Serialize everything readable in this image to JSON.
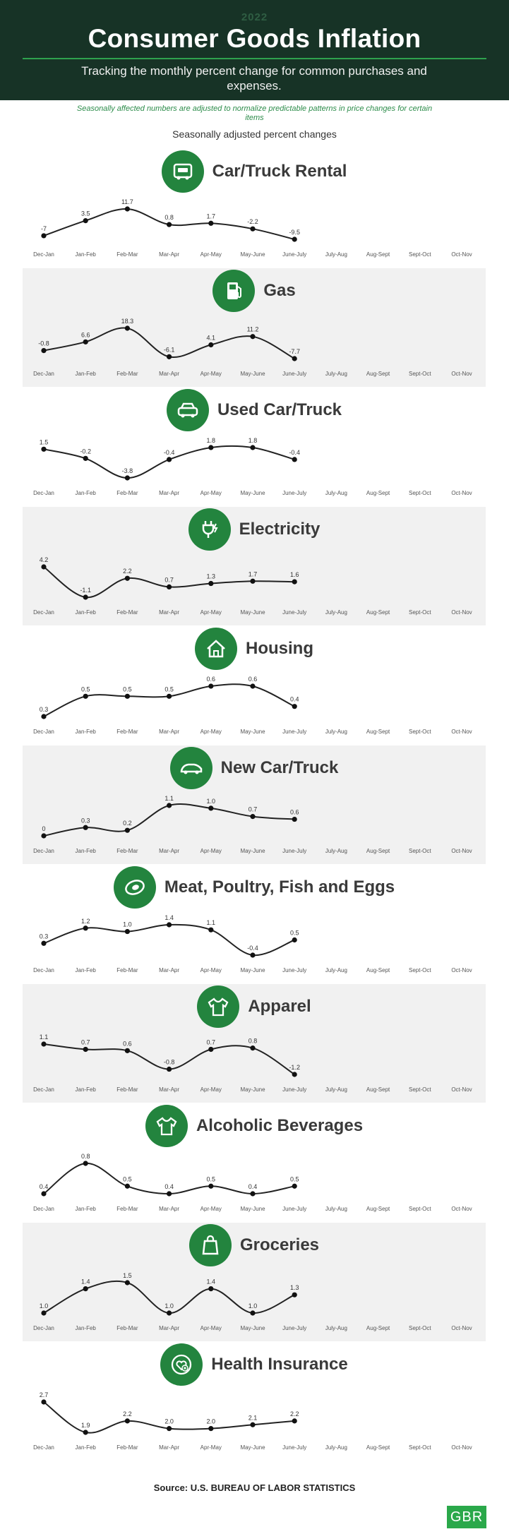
{
  "header": {
    "year": "2022",
    "title": "Consumer Goods Inflation",
    "subtitle": "Tracking the monthly percent change for common purchases and expenses."
  },
  "note": "Seasonally affected numbers are adjusted to normalize predictable patterns in price changes for certain items",
  "chart_label": "Seasonally adjusted percent changes",
  "source": "Source: U.S. BUREAU OF LABOR STATISTICS",
  "logo_text": "GBR",
  "colors": {
    "header_bg": "#173326",
    "accent": "#23843e",
    "line": "#222222",
    "panel_bg": "#f1f1f1"
  },
  "chart_data": [
    {
      "type": "line",
      "title": "Car/Truck Rental",
      "icon": "car-rental-icon",
      "categories": [
        "Dec-Jan",
        "Jan-Feb",
        "Feb-Mar",
        "Mar-Apr",
        "Apr-May",
        "May-June",
        "June-July",
        "July-Aug",
        "Aug-Sept",
        "Sept-Oct",
        "Oct-Nov"
      ],
      "values": [
        -7,
        3.5,
        11.7,
        0.8,
        1.7,
        -2.2,
        -9.5
      ],
      "labels": [
        "-7",
        "3.5",
        "11.7",
        "0.8",
        "1.7",
        "-2.2",
        "-9.5"
      ]
    },
    {
      "type": "line",
      "title": "Gas",
      "icon": "gas-pump-icon",
      "categories": [
        "Dec-Jan",
        "Jan-Feb",
        "Feb-Mar",
        "Mar-Apr",
        "Apr-May",
        "May-June",
        "June-July",
        "July-Aug",
        "Aug-Sept",
        "Sept-Oct",
        "Oct-Nov"
      ],
      "values": [
        -0.8,
        6.6,
        18.3,
        -6.1,
        4.1,
        11.2,
        -7.7
      ],
      "labels": [
        "-0.8",
        "6.6",
        "18.3",
        "-6.1",
        "4.1",
        "11.2",
        "-7.7"
      ]
    },
    {
      "type": "line",
      "title": "Used Car/Truck",
      "icon": "car-icon",
      "categories": [
        "Dec-Jan",
        "Jan-Feb",
        "Feb-Mar",
        "Mar-Apr",
        "Apr-May",
        "May-June",
        "June-July",
        "July-Aug",
        "Aug-Sept",
        "Sept-Oct",
        "Oct-Nov"
      ],
      "values": [
        1.5,
        -0.2,
        -3.8,
        -0.4,
        1.8,
        1.8,
        -0.4
      ],
      "labels": [
        "1.5",
        "-0.2",
        "-3.8",
        "-0.4",
        "1.8",
        "1.8",
        "-0.4"
      ]
    },
    {
      "type": "line",
      "title": "Electricity",
      "icon": "plug-icon",
      "categories": [
        "Dec-Jan",
        "Jan-Feb",
        "Feb-Mar",
        "Mar-Apr",
        "Apr-May",
        "May-June",
        "June-July",
        "July-Aug",
        "Aug-Sept",
        "Sept-Oct",
        "Oct-Nov"
      ],
      "values": [
        4.2,
        -1.1,
        2.2,
        0.7,
        1.3,
        1.7,
        1.6
      ],
      "labels": [
        "4.2",
        "-1.1",
        "2.2",
        "0.7",
        "1.3",
        "1.7",
        "1.6"
      ]
    },
    {
      "type": "line",
      "title": "Housing",
      "icon": "house-icon",
      "categories": [
        "Dec-Jan",
        "Jan-Feb",
        "Feb-Mar",
        "Mar-Apr",
        "Apr-May",
        "May-June",
        "June-July",
        "July-Aug",
        "Aug-Sept",
        "Sept-Oct",
        "Oct-Nov"
      ],
      "values": [
        0.3,
        0.5,
        0.5,
        0.5,
        0.6,
        0.6,
        0.4
      ],
      "labels": [
        "0.3",
        "0.5",
        "0.5",
        "0.5",
        "0.6",
        "0.6",
        "0.4"
      ]
    },
    {
      "type": "line",
      "title": "New Car/Truck",
      "icon": "new-car-icon",
      "categories": [
        "Dec-Jan",
        "Jan-Feb",
        "Feb-Mar",
        "Mar-Apr",
        "Apr-May",
        "May-June",
        "June-July",
        "July-Aug",
        "Aug-Sept",
        "Sept-Oct",
        "Oct-Nov"
      ],
      "values": [
        0,
        0.3,
        0.2,
        1.1,
        1.0,
        0.7,
        0.6
      ],
      "labels": [
        "0",
        "0.3",
        "0.2",
        "1.1",
        "1.0",
        "0.7",
        "0.6"
      ]
    },
    {
      "type": "line",
      "title": "Meat, Poultry, Fish and Eggs",
      "icon": "steak-icon",
      "categories": [
        "Dec-Jan",
        "Jan-Feb",
        "Feb-Mar",
        "Mar-Apr",
        "Apr-May",
        "May-June",
        "June-July",
        "July-Aug",
        "Aug-Sept",
        "Sept-Oct",
        "Oct-Nov"
      ],
      "values": [
        0.3,
        1.2,
        1.0,
        1.4,
        1.1,
        -0.4,
        0.5
      ],
      "labels": [
        "0.3",
        "1.2",
        "1.0",
        "1.4",
        "1.1",
        "-0.4",
        "0.5"
      ]
    },
    {
      "type": "line",
      "title": "Apparel",
      "icon": "shirt-icon",
      "categories": [
        "Dec-Jan",
        "Jan-Feb",
        "Feb-Mar",
        "Mar-Apr",
        "Apr-May",
        "May-June",
        "June-July",
        "July-Aug",
        "Aug-Sept",
        "Sept-Oct",
        "Oct-Nov"
      ],
      "values": [
        1.1,
        0.7,
        0.6,
        -0.8,
        0.7,
        0.8,
        -1.2
      ],
      "labels": [
        "1.1",
        "0.7",
        "0.6",
        "-0.8",
        "0.7",
        "0.8",
        "-1.2"
      ]
    },
    {
      "type": "line",
      "title": "Alcoholic Beverages",
      "icon": "shirt-icon",
      "categories": [
        "Dec-Jan",
        "Jan-Feb",
        "Feb-Mar",
        "Mar-Apr",
        "Apr-May",
        "May-June",
        "June-July",
        "July-Aug",
        "Aug-Sept",
        "Sept-Oct",
        "Oct-Nov"
      ],
      "values": [
        0.4,
        0.8,
        0.5,
        0.4,
        0.5,
        0.4,
        0.5
      ],
      "labels": [
        "0.4",
        "0.8",
        "0.5",
        "0.4",
        "0.5",
        "0.4",
        "0.5"
      ]
    },
    {
      "type": "line",
      "title": "Groceries",
      "icon": "grocery-bag-icon",
      "categories": [
        "Dec-Jan",
        "Jan-Feb",
        "Feb-Mar",
        "Mar-Apr",
        "Apr-May",
        "May-June",
        "June-July",
        "July-Aug",
        "Aug-Sept",
        "Sept-Oct",
        "Oct-Nov"
      ],
      "values": [
        1.0,
        1.4,
        1.5,
        1.0,
        1.4,
        1.0,
        1.3
      ],
      "labels": [
        "1.0",
        "1.4",
        "1.5",
        "1.0",
        "1.4",
        "1.0",
        "1.3"
      ]
    },
    {
      "type": "line",
      "title": "Health Insurance",
      "icon": "health-heart-icon",
      "categories": [
        "Dec-Jan",
        "Jan-Feb",
        "Feb-Mar",
        "Mar-Apr",
        "Apr-May",
        "May-June",
        "June-July",
        "July-Aug",
        "Aug-Sept",
        "Sept-Oct",
        "Oct-Nov"
      ],
      "values": [
        2.7,
        1.9,
        2.2,
        2.0,
        2.0,
        2.1,
        2.2
      ],
      "labels": [
        "2.7",
        "1.9",
        "2.2",
        "2.0",
        "2.0",
        "2.1",
        "2.2"
      ]
    }
  ]
}
